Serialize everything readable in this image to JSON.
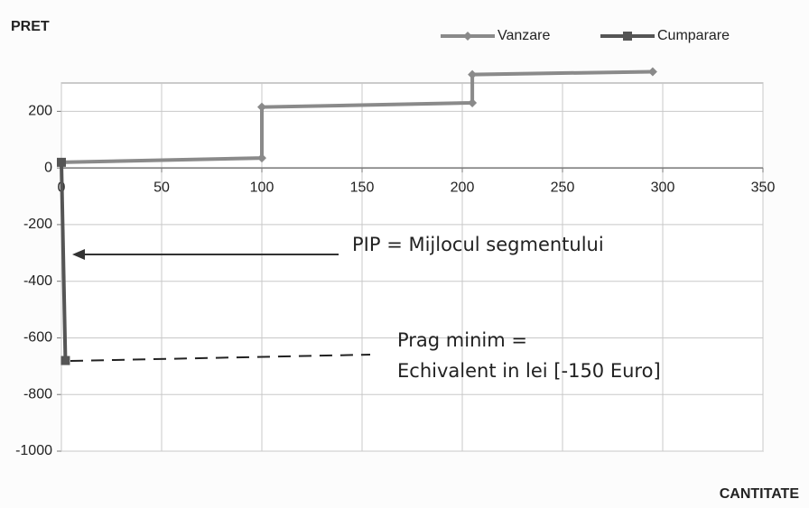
{
  "chart_data": {
    "type": "line",
    "y_label": "PRET",
    "x_label": "CANTITATE",
    "annotations": [
      "PIP = Mijlocul segmentului",
      "Prag minim =",
      "Echivalent in lei [-150 Euro]"
    ],
    "series": [
      {
        "name": "Vanzare",
        "color": "#8a8a8a",
        "marker": "diamond",
        "x": [
          0,
          100,
          100,
          205,
          205,
          295
        ],
        "values": [
          20,
          35,
          215,
          230,
          330,
          340
        ]
      },
      {
        "name": "Cumparare",
        "color": "#555555",
        "marker": "square",
        "x": [
          0,
          2
        ],
        "values": [
          20,
          -680
        ]
      }
    ],
    "xlim": [
      0,
      350
    ],
    "xticks": [
      0,
      50,
      100,
      150,
      200,
      250,
      300,
      350
    ],
    "ylim": [
      -1000,
      300
    ],
    "yticks": [
      200,
      0,
      -200,
      -400,
      -600,
      -800,
      -1000
    ],
    "grid": true,
    "legend": "top-right"
  }
}
